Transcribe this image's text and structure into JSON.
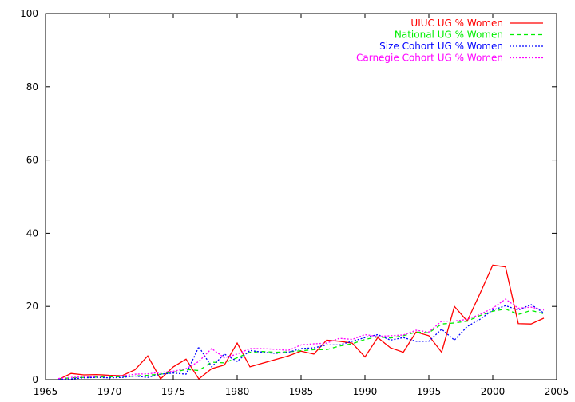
{
  "chart_data": {
    "type": "line",
    "xlim": [
      1965,
      2005
    ],
    "ylim": [
      0,
      100
    ],
    "x_ticks": [
      "1965",
      "1970",
      "1975",
      "1980",
      "1985",
      "1990",
      "1995",
      "2000",
      "2005"
    ],
    "y_ticks": [
      "0",
      "20",
      "40",
      "60",
      "80",
      "100"
    ],
    "grid": false,
    "legend_position": "top-right",
    "series": [
      {
        "name": "UIUC UG % Women",
        "color": "#ff0000",
        "dash": "solid",
        "x": [
          1966,
          1967,
          1968,
          1969,
          1970,
          1971,
          1972,
          1973,
          1974,
          1975,
          1976,
          1977,
          1978,
          1979,
          1980,
          1981,
          1982,
          1983,
          1984,
          1985,
          1986,
          1987,
          1988,
          1989,
          1990,
          1991,
          1992,
          1993,
          1994,
          1995,
          1996,
          1997,
          1998,
          1999,
          2000,
          2001,
          2002,
          2003,
          2004
        ],
        "y": [
          0,
          1.7,
          1.3,
          1.4,
          1.2,
          1.1,
          2.7,
          6.5,
          0.2,
          3.5,
          5.6,
          0.2,
          3.0,
          4.0,
          10.0,
          3.5,
          4.5,
          5.5,
          6.5,
          7.8,
          7.0,
          10.8,
          10.5,
          10.0,
          6.2,
          11.5,
          8.7,
          7.5,
          13.0,
          12.0,
          7.5,
          20.0,
          16.0,
          23.5,
          31.3,
          30.8,
          15.3,
          15.2,
          16.8
        ]
      },
      {
        "name": "National UG % Women",
        "color": "#00ee00",
        "dash": "dashed",
        "x": [
          1966,
          1967,
          1968,
          1969,
          1970,
          1971,
          1972,
          1973,
          1974,
          1975,
          1976,
          1977,
          1978,
          1979,
          1980,
          1981,
          1982,
          1983,
          1984,
          1985,
          1986,
          1987,
          1988,
          1989,
          1990,
          1991,
          1992,
          1993,
          1994,
          1995,
          1996,
          1997,
          1998,
          1999,
          2000,
          2001,
          2002,
          2003,
          2004
        ],
        "y": [
          0.2,
          0.5,
          0.6,
          0.7,
          0.8,
          0.8,
          1.0,
          1.2,
          1.5,
          2.0,
          2.8,
          2.5,
          4.8,
          4.6,
          6.0,
          7.5,
          7.7,
          7.5,
          7.6,
          7.9,
          8.2,
          8.2,
          9.2,
          9.8,
          11.0,
          11.7,
          11.4,
          12.0,
          13.0,
          12.8,
          15.2,
          15.5,
          16.0,
          17.5,
          18.7,
          19.3,
          17.8,
          18.9,
          18.0
        ]
      },
      {
        "name": "Size Cohort UG % Women",
        "color": "#0000ff",
        "dash": "dotted",
        "x": [
          1966,
          1967,
          1968,
          1969,
          1970,
          1971,
          1972,
          1973,
          1974,
          1975,
          1976,
          1977,
          1978,
          1979,
          1980,
          1981,
          1982,
          1983,
          1984,
          1985,
          1986,
          1987,
          1988,
          1989,
          1990,
          1991,
          1992,
          1993,
          1994,
          1995,
          1996,
          1997,
          1998,
          1999,
          2000,
          2001,
          2002,
          2003,
          2004
        ],
        "y": [
          0,
          0.2,
          0.5,
          0.6,
          0.5,
          0.6,
          1.0,
          0.6,
          1.5,
          1.8,
          1.5,
          9.0,
          3.5,
          7.0,
          5.0,
          8.0,
          7.5,
          7.2,
          7.5,
          8.5,
          8.7,
          9.5,
          9.5,
          10.5,
          11.5,
          12.3,
          10.8,
          11.5,
          10.5,
          10.5,
          13.8,
          10.8,
          14.5,
          16.5,
          19.0,
          20.2,
          19.0,
          20.5,
          18.2
        ]
      },
      {
        "name": "Carnegie Cohort UG % Women",
        "color": "#ff00ff",
        "dash": "dotted",
        "x": [
          1966,
          1967,
          1968,
          1969,
          1970,
          1971,
          1972,
          1973,
          1974,
          1975,
          1976,
          1977,
          1978,
          1979,
          1980,
          1981,
          1982,
          1983,
          1984,
          1985,
          1986,
          1987,
          1988,
          1989,
          1990,
          1991,
          1992,
          1993,
          1994,
          1995,
          1996,
          1997,
          1998,
          1999,
          2000,
          2001,
          2002,
          2003,
          2004
        ],
        "y": [
          0.3,
          0.6,
          0.8,
          0.9,
          1.0,
          1.0,
          1.5,
          1.6,
          2.0,
          2.3,
          3.0,
          5.0,
          8.5,
          6.0,
          7.0,
          8.5,
          8.5,
          8.3,
          8.0,
          9.5,
          9.8,
          10.0,
          11.3,
          11.0,
          12.3,
          11.8,
          12.0,
          12.2,
          13.5,
          13.0,
          16.0,
          16.0,
          16.5,
          17.8,
          19.5,
          22.0,
          19.5,
          19.8,
          19.0
        ]
      }
    ]
  }
}
